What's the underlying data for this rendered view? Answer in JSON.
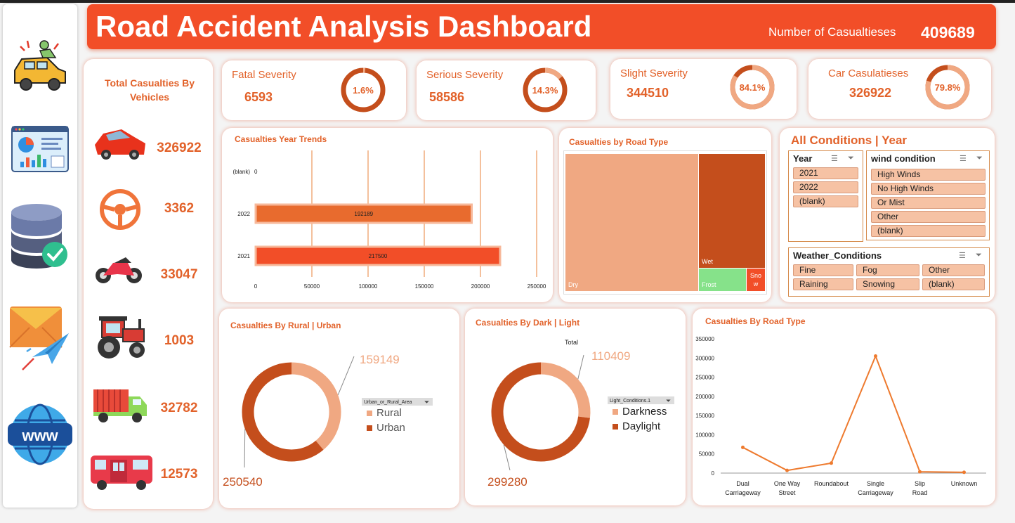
{
  "header": {
    "title": "Road Accident Analysis Dashboard",
    "casualties_label": "Number of Casualtieses",
    "casualties_value": "409689"
  },
  "sidebar": {
    "icons": [
      "car-crash-icon",
      "dashboard-chart-icon",
      "database-check-icon",
      "email-send-icon",
      "www-globe-icon"
    ]
  },
  "kpis": [
    {
      "label": "Fatal Severity",
      "value": "6593",
      "pct": "1.6%",
      "fraction": 0.016
    },
    {
      "label": "Serious Severity",
      "value": "58586",
      "pct": "14.3%",
      "fraction": 0.143
    },
    {
      "label": "Slight Severity",
      "value": "344510",
      "pct": "84.1%",
      "fraction": 0.841
    },
    {
      "label": "Car Casulatieses",
      "value": "326922",
      "pct": "79.8%",
      "fraction": 0.798
    }
  ],
  "vehicles": {
    "title": "Total Casualties By Vehicles",
    "rows": [
      {
        "icon": "car-icon",
        "value": "326922"
      },
      {
        "icon": "steering-wheel-icon",
        "value": "3362"
      },
      {
        "icon": "motorcycle-icon",
        "value": "33047"
      },
      {
        "icon": "tractor-icon",
        "value": "1003"
      },
      {
        "icon": "truck-icon",
        "value": "32782"
      },
      {
        "icon": "bus-icon",
        "value": "12573"
      }
    ]
  },
  "slicers": {
    "title": "All Conditions | Year",
    "year": {
      "header": "Year",
      "items": [
        "2021",
        "2022",
        "(blank)"
      ]
    },
    "wind": {
      "header": "wind condition",
      "items": [
        "High Winds",
        "No High Winds",
        "Or Mist",
        "Other",
        "(blank)"
      ]
    },
    "weather": {
      "header": "Weather_Conditions",
      "items": [
        "Fine",
        "Fog",
        "Other",
        "Raining",
        "Snowing",
        "(blank)"
      ]
    }
  },
  "chart_data": [
    {
      "id": "year_trends",
      "type": "bar",
      "orientation": "horizontal",
      "title": "Casualties Year Trends",
      "categories": [
        "(blank)",
        "2022",
        "2021"
      ],
      "values": [
        0,
        192189,
        217500
      ],
      "xlim": [
        0,
        250000
      ],
      "xticks": [
        "0",
        "50000",
        "100000",
        "150000",
        "200000",
        "250000"
      ],
      "colors": [
        "#e86b2e",
        "#e86b2e",
        "#f24e28"
      ],
      "grid": true
    },
    {
      "id": "road_type_treemap",
      "type": "treemap",
      "title": "Casualties  by Road Type",
      "items": [
        {
          "label": "Dry",
          "color": "#f0a882"
        },
        {
          "label": "Wet",
          "color": "#c44e1c"
        },
        {
          "label": "Frost",
          "color": "#86e28a"
        },
        {
          "label": "Sno w",
          "color": "#f24e28"
        }
      ]
    },
    {
      "id": "rural_urban",
      "type": "pie",
      "title": "Casualties By Rural | Urban",
      "legend_title": "Urban_or_Rural_Area",
      "labels": [
        "Rural",
        "Urban"
      ],
      "values": [
        159149,
        250540
      ],
      "colors": [
        "#f0a882",
        "#c44e1c"
      ]
    },
    {
      "id": "dark_light",
      "type": "pie",
      "title": "Casualties  By  Dark | Light",
      "subtitle": "Total",
      "legend_title": "Light_Conditions.1",
      "labels": [
        "Darkness",
        "Daylight"
      ],
      "values": [
        110409,
        299280
      ],
      "colors": [
        "#f0a882",
        "#c44e1c"
      ]
    },
    {
      "id": "road_type_line",
      "type": "line",
      "title": "Casualties  By  Road Type",
      "categories": [
        "Dual Carriageway",
        "One Way Street",
        "Roundabout",
        "Single Carriageway",
        "Slip Road",
        "Unknown"
      ],
      "values": [
        67000,
        7000,
        26000,
        305000,
        3500,
        2000
      ],
      "ylim": [
        0,
        350000
      ],
      "yticks": [
        "0",
        "50000",
        "100000",
        "150000",
        "200000",
        "250000",
        "300000",
        "350000"
      ],
      "color": "#ee7a2e"
    }
  ]
}
